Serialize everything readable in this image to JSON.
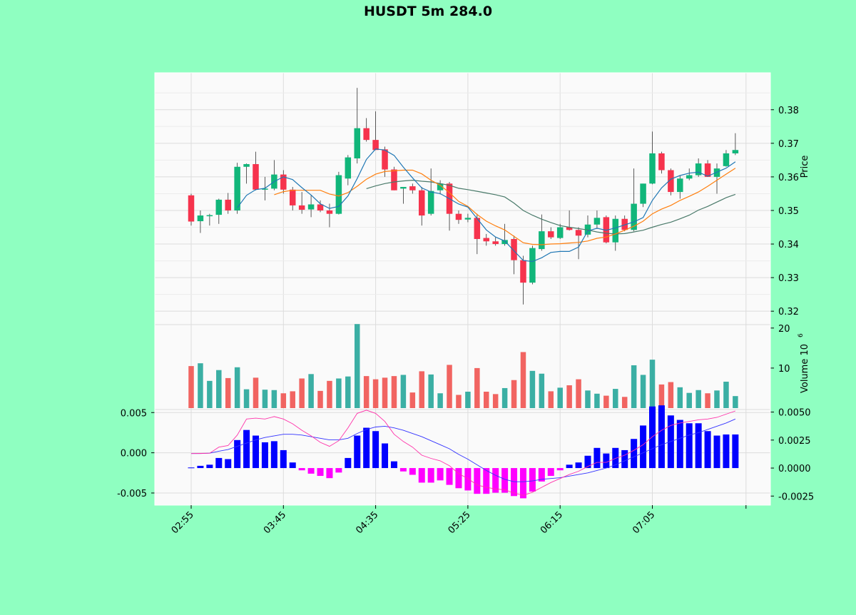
{
  "figure": {
    "title": "HUSDT 5m 284.0",
    "background": "#8fffc1"
  },
  "chart_data": {
    "type": "candlestick",
    "title": "HUSDT 5m 284.0",
    "interval_minutes": 5,
    "x_tick_labels": [
      "02:55",
      "03:45",
      "04:35",
      "05:25",
      "06:15",
      "07:05"
    ],
    "colors": {
      "up": "#26a69a",
      "down": "#ef5350",
      "up_body": "#11b67a",
      "down_body": "#f6334d",
      "sma_fast": "#1f77b4",
      "sma_mid": "#ff7f0e",
      "sma_slow": "#4a7a6a",
      "macd_pos": "#0000ff",
      "macd_neg": "#ff00ff",
      "macd_line": "#3333ff",
      "signal_line": "#ff33aa",
      "panel_bg": "#fafafa",
      "grid": "#dcdcdc"
    },
    "price_panel": {
      "ylabel": "Price",
      "ylim": [
        0.316,
        0.391
      ],
      "yticks": [
        "0.32",
        "0.33",
        "0.34",
        "0.35",
        "0.36",
        "0.37",
        "0.38"
      ],
      "candles": [
        [
          0.3545,
          0.355,
          0.3455,
          0.3467
        ],
        [
          0.3468,
          0.35,
          0.3433,
          0.3485
        ],
        [
          0.3486,
          0.349,
          0.3455,
          0.3486
        ],
        [
          0.3487,
          0.3535,
          0.346,
          0.3532
        ],
        [
          0.3532,
          0.3552,
          0.349,
          0.35
        ],
        [
          0.35,
          0.3642,
          0.349,
          0.363
        ],
        [
          0.363,
          0.364,
          0.358,
          0.3638
        ],
        [
          0.3638,
          0.3675,
          0.356,
          0.3562
        ],
        [
          0.3562,
          0.36,
          0.353,
          0.3565
        ],
        [
          0.3565,
          0.365,
          0.356,
          0.3607
        ],
        [
          0.3607,
          0.362,
          0.355,
          0.3562
        ],
        [
          0.3562,
          0.357,
          0.35,
          0.3515
        ],
        [
          0.3515,
          0.3555,
          0.349,
          0.3502
        ],
        [
          0.3503,
          0.3545,
          0.348,
          0.3518
        ],
        [
          0.3518,
          0.353,
          0.3495,
          0.35
        ],
        [
          0.35,
          0.352,
          0.345,
          0.349
        ],
        [
          0.349,
          0.3615,
          0.3488,
          0.3605
        ],
        [
          0.3595,
          0.3665,
          0.3575,
          0.3658
        ],
        [
          0.3655,
          0.3865,
          0.364,
          0.3745
        ],
        [
          0.3745,
          0.3775,
          0.3705,
          0.371
        ],
        [
          0.371,
          0.3795,
          0.368,
          0.368
        ],
        [
          0.3682,
          0.369,
          0.36,
          0.3622
        ],
        [
          0.3622,
          0.363,
          0.356,
          0.356
        ],
        [
          0.3565,
          0.357,
          0.352,
          0.357
        ],
        [
          0.3572,
          0.358,
          0.355,
          0.356
        ],
        [
          0.356,
          0.357,
          0.3455,
          0.3485
        ],
        [
          0.349,
          0.3625,
          0.3485,
          0.3558
        ],
        [
          0.356,
          0.359,
          0.3548,
          0.358
        ],
        [
          0.358,
          0.3585,
          0.344,
          0.349
        ],
        [
          0.349,
          0.35,
          0.346,
          0.3472
        ],
        [
          0.3473,
          0.349,
          0.3465,
          0.3478
        ],
        [
          0.3478,
          0.349,
          0.337,
          0.3415
        ],
        [
          0.3418,
          0.343,
          0.3395,
          0.3408
        ],
        [
          0.3408,
          0.342,
          0.3395,
          0.34
        ],
        [
          0.34,
          0.346,
          0.3395,
          0.3412
        ],
        [
          0.3415,
          0.3425,
          0.331,
          0.3352
        ],
        [
          0.3352,
          0.3365,
          0.322,
          0.3285
        ],
        [
          0.3285,
          0.3395,
          0.328,
          0.3388
        ],
        [
          0.3385,
          0.3488,
          0.338,
          0.3438
        ],
        [
          0.3438,
          0.345,
          0.3415,
          0.342
        ],
        [
          0.3418,
          0.346,
          0.3415,
          0.345
        ],
        [
          0.345,
          0.35,
          0.344,
          0.3442
        ],
        [
          0.3442,
          0.345,
          0.3355,
          0.3425
        ],
        [
          0.3428,
          0.3485,
          0.342,
          0.3458
        ],
        [
          0.3458,
          0.35,
          0.3445,
          0.3478
        ],
        [
          0.348,
          0.3485,
          0.3402,
          0.3405
        ],
        [
          0.3405,
          0.3485,
          0.338,
          0.3475
        ],
        [
          0.3475,
          0.3485,
          0.3438,
          0.3442
        ],
        [
          0.3442,
          0.3625,
          0.3438,
          0.352
        ],
        [
          0.352,
          0.358,
          0.351,
          0.358
        ],
        [
          0.358,
          0.3735,
          0.3578,
          0.367
        ],
        [
          0.367,
          0.3675,
          0.361,
          0.362
        ],
        [
          0.362,
          0.3625,
          0.3545,
          0.3555
        ],
        [
          0.3555,
          0.3605,
          0.3535,
          0.3595
        ],
        [
          0.3595,
          0.3625,
          0.359,
          0.3605
        ],
        [
          0.3605,
          0.3655,
          0.36,
          0.364
        ],
        [
          0.364,
          0.365,
          0.36,
          0.36
        ],
        [
          0.36,
          0.364,
          0.355,
          0.3625
        ],
        [
          0.3632,
          0.368,
          0.363,
          0.367
        ],
        [
          0.367,
          0.373,
          0.3665,
          0.368
        ]
      ],
      "sma_fast": [
        null,
        null,
        null,
        null,
        null,
        0.3508,
        0.3545,
        0.3562,
        0.3566,
        0.3586,
        0.36,
        0.3592,
        0.3568,
        0.3546,
        0.352,
        0.3506,
        0.3512,
        0.3543,
        0.3595,
        0.3652,
        0.3683,
        0.368,
        0.3664,
        0.3629,
        0.3597,
        0.3567,
        0.3555,
        0.355,
        0.3535,
        0.3519,
        0.351,
        0.3476,
        0.3442,
        0.3421,
        0.3409,
        0.338,
        0.3351,
        0.3348,
        0.3359,
        0.3375,
        0.3378,
        0.3378,
        0.3391,
        0.3439,
        0.3447,
        0.3441,
        0.3448,
        0.3457,
        0.3466,
        0.3479,
        0.353,
        0.3567,
        0.3593,
        0.3604,
        0.3611,
        0.3614,
        0.3602,
        0.3614,
        0.3626,
        0.3645
      ],
      "sma_mid": [
        null,
        null,
        null,
        null,
        null,
        null,
        null,
        null,
        null,
        0.3547,
        0.3556,
        0.356,
        0.356,
        0.356,
        0.356,
        0.3549,
        0.3543,
        0.3553,
        0.3572,
        0.3593,
        0.3608,
        0.3616,
        0.3618,
        0.362,
        0.362,
        0.3609,
        0.359,
        0.3575,
        0.3553,
        0.3527,
        0.3512,
        0.3488,
        0.3468,
        0.3454,
        0.3442,
        0.3423,
        0.3404,
        0.3399,
        0.3398,
        0.34,
        0.3401,
        0.3403,
        0.3405,
        0.3409,
        0.3417,
        0.3421,
        0.343,
        0.3441,
        0.3453,
        0.3468,
        0.349,
        0.3504,
        0.3515,
        0.353,
        0.3542,
        0.3555,
        0.3572,
        0.359,
        0.3608,
        0.3626
      ],
      "sma_slow": [
        null,
        null,
        null,
        null,
        null,
        null,
        null,
        null,
        null,
        null,
        null,
        null,
        null,
        null,
        null,
        null,
        null,
        null,
        null,
        0.3565,
        0.3573,
        0.358,
        0.3585,
        0.3588,
        0.359,
        0.3587,
        0.3585,
        0.358,
        0.3575,
        0.3566,
        0.3562,
        0.3557,
        0.3552,
        0.3547,
        0.354,
        0.3522,
        0.35,
        0.3486,
        0.3474,
        0.3464,
        0.3455,
        0.345,
        0.3446,
        0.3442,
        0.3436,
        0.3432,
        0.343,
        0.3431,
        0.3436,
        0.3441,
        0.345,
        0.3458,
        0.3465,
        0.3475,
        0.3486,
        0.3501,
        0.3512,
        0.3525,
        0.3538,
        0.3548
      ]
    },
    "volume_panel": {
      "ylabel": "Volume  10^6",
      "ylim": [
        0,
        20.5
      ],
      "yticks": [
        "10",
        "20"
      ],
      "values": [
        10.5,
        11.2,
        6.8,
        9.5,
        7.5,
        10.2,
        4.7,
        7.6,
        4.6,
        4.5,
        3.7,
        4.2,
        7.4,
        8.5,
        4.3,
        6.8,
        7.4,
        7.9,
        21.0,
        8.0,
        7.2,
        7.6,
        8.0,
        8.3,
        3.9,
        9.2,
        8.4,
        3.7,
        10.8,
        3.3,
        4.1,
        10.0,
        4.1,
        3.5,
        5.0,
        7.0,
        14.0,
        9.3,
        8.6,
        4.2,
        5.1,
        5.7,
        7.2,
        4.4,
        3.6,
        3.1,
        4.8,
        2.8,
        10.7,
        8.3,
        12.1,
        5.9,
        6.5,
        5.2,
        3.8,
        4.5,
        3.7,
        4.4,
        6.6,
        3.0
      ]
    },
    "macd_panel": {
      "ylim_left": [
        -0.0058,
        0.0052
      ],
      "yticks_left": [
        "0.005",
        "0.000",
        "-0.005"
      ],
      "ylim_right": [
        -0.0028,
        0.0051
      ],
      "yticks_right": [
        "0.0050",
        "0.0025",
        "0.0000",
        "-0.0025"
      ],
      "histogram": [
        5e-05,
        0.0002,
        0.0003,
        0.0009,
        0.0008,
        0.0025,
        0.0034,
        0.0029,
        0.0023,
        0.0024,
        0.0016,
        0.0005,
        -0.0002,
        -0.0005,
        -0.0007,
        -0.0009,
        -0.0004,
        0.0009,
        0.0029,
        0.0036,
        0.0033,
        0.0022,
        0.0006,
        -0.0003,
        -0.0006,
        -0.0013,
        -0.0013,
        -0.0011,
        -0.0015,
        -0.0018,
        -0.002,
        -0.0023,
        -0.0023,
        -0.0022,
        -0.0022,
        -0.0025,
        -0.0027,
        -0.0021,
        -0.0012,
        -0.0007,
        -0.0002,
        0.0003,
        0.0005,
        0.0011,
        0.0018,
        0.0013,
        0.0018,
        0.0016,
        0.0026,
        0.0038,
        0.0055,
        0.0056,
        0.0047,
        0.0043,
        0.004,
        0.004,
        0.0033,
        0.0029,
        0.003,
        0.003
      ],
      "macd_line": [
        -0.0001,
        -8e-05,
        -5e-05,
        0.0007,
        0.0009,
        0.0022,
        0.0042,
        0.0043,
        0.0042,
        0.0045,
        0.0042,
        0.0036,
        0.0028,
        0.0021,
        0.0013,
        0.0008,
        0.0015,
        0.0031,
        0.0049,
        0.0053,
        0.0049,
        0.0039,
        0.0023,
        0.0014,
        0.0007,
        -0.0003,
        -0.0007,
        -0.001,
        -0.0016,
        -0.0026,
        -0.0032,
        -0.004,
        -0.0043,
        -0.0045,
        -0.0046,
        -0.005,
        -0.0053,
        -0.0049,
        -0.0043,
        -0.0037,
        -0.0032,
        -0.0027,
        -0.0023,
        -0.0017,
        -0.0012,
        -0.0012,
        -0.0007,
        -0.0003,
        0.0003,
        0.001,
        0.002,
        0.0028,
        0.0034,
        0.0037,
        0.0039,
        0.0041,
        0.0042,
        0.0044,
        0.0048,
        0.0052
      ],
      "signal_line": [
        -0.0001,
        -0.0001,
        -5e-05,
        0.0002,
        0.0004,
        0.0008,
        0.0012,
        0.0016,
        0.0019,
        0.0021,
        0.0023,
        0.0023,
        0.0022,
        0.002,
        0.0018,
        0.0016,
        0.0016,
        0.0018,
        0.0024,
        0.0029,
        0.0032,
        0.0033,
        0.0031,
        0.0028,
        0.0024,
        0.002,
        0.0015,
        0.001,
        0.0005,
        -0.0002,
        -0.0008,
        -0.0015,
        -0.0022,
        -0.0028,
        -0.0033,
        -0.0036,
        -0.0036,
        -0.0035,
        -0.0033,
        -0.0032,
        -0.0031,
        -0.0029,
        -0.0027,
        -0.0025,
        -0.0022,
        -0.0019,
        -0.0015,
        -0.001,
        -0.0005,
        0.0,
        0.0005,
        0.001,
        0.0014,
        0.0018,
        0.0022,
        0.0025,
        0.0029,
        0.0033,
        0.0037,
        0.0042
      ]
    }
  }
}
